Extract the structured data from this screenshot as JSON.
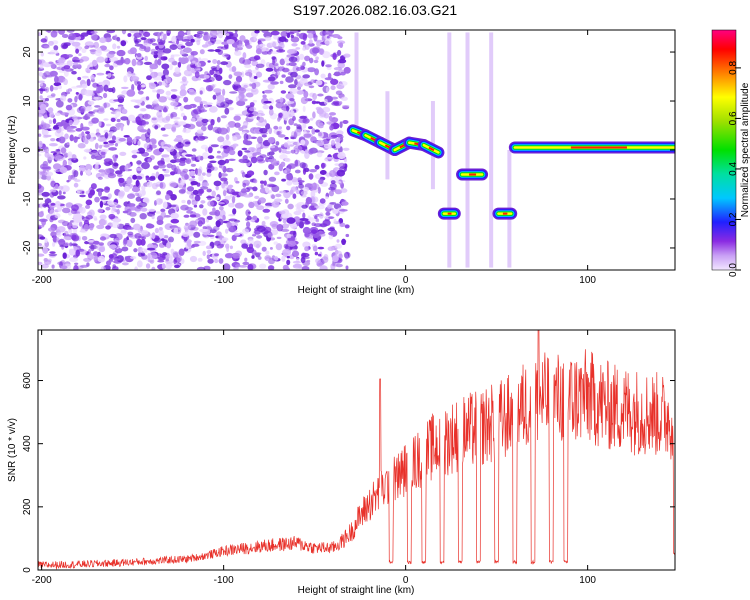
{
  "title": "S197.2026.082.16.03.G21",
  "colors": {
    "snr_line": "#e8312a",
    "frame": "#000000"
  },
  "chart_data": [
    {
      "type": "heatmap",
      "title": "S197.2026.082.16.03.G21",
      "xlabel": "Height of straight line (km)",
      "ylabel": "Frequency (Hz)",
      "xlim": [
        -202,
        148
      ],
      "ylim": [
        -24.5,
        24.5
      ],
      "xticks": [
        -200,
        -100,
        0,
        100
      ],
      "xtick_labels": [
        "-200",
        "-100",
        "0",
        "100"
      ],
      "yticks": [
        -20,
        -10,
        0,
        10,
        20
      ],
      "ytick_labels": [
        "-20",
        "-10",
        "0",
        "10",
        "20"
      ],
      "noise_region": {
        "x": [
          -202,
          -32
        ],
        "y": [
          -24.5,
          24.5
        ]
      },
      "ridge": [
        {
          "x": [
            -29,
            -22
          ],
          "f": [
            4,
            3
          ]
        },
        {
          "x": [
            -22,
            -14
          ],
          "f": [
            3,
            1.5
          ]
        },
        {
          "x": [
            -14,
            -6
          ],
          "f": [
            1.5,
            0
          ]
        },
        {
          "x": [
            -6,
            2
          ],
          "f": [
            0,
            1.5
          ]
        },
        {
          "x": [
            2,
            10
          ],
          "f": [
            1.5,
            1
          ]
        },
        {
          "x": [
            10,
            18
          ],
          "f": [
            1,
            -0.5
          ]
        },
        {
          "x": [
            21,
            27
          ],
          "f": [
            -13,
            -13
          ]
        },
        {
          "x": [
            31,
            42
          ],
          "f": [
            -5,
            -5
          ]
        },
        {
          "x": [
            51,
            58
          ],
          "f": [
            -13,
            -13
          ]
        },
        {
          "x": [
            60,
            148
          ],
          "f": [
            0.5,
            0.5
          ]
        }
      ],
      "colorbar": {
        "label": "Normalized spectral amplitude",
        "range": [
          0.0,
          0.95
        ],
        "ticks": [
          0.0,
          0.2,
          0.4,
          0.6,
          0.8
        ],
        "tick_labels": [
          "0.0",
          "0.2",
          "0.4",
          "0.6",
          "0.8"
        ]
      }
    },
    {
      "type": "line",
      "xlabel": "Height of straight line (km)",
      "ylabel": "SNR (10 * v/v)",
      "xlim": [
        -202,
        148
      ],
      "ylim": [
        0,
        760
      ],
      "xticks": [
        -200,
        -100,
        0,
        100
      ],
      "xtick_labels": [
        "-200",
        "-100",
        "0",
        "100"
      ],
      "yticks": [
        0,
        200,
        400,
        600
      ],
      "ytick_labels": [
        "0",
        "200",
        "400",
        "600"
      ],
      "series": [
        {
          "name": "SNR",
          "x": [
            -202,
            -180,
            -160,
            -140,
            -120,
            -110,
            -100,
            -80,
            -60,
            -50,
            -40,
            -35,
            -30,
            -25,
            -20,
            -15,
            -10,
            -5,
            0,
            5,
            10,
            15,
            20,
            25,
            30,
            35,
            40,
            45,
            50,
            55,
            60,
            65,
            70,
            75,
            80,
            85,
            90,
            95,
            100,
            110,
            120,
            130,
            140,
            148
          ],
          "y": [
            15,
            18,
            22,
            28,
            35,
            45,
            60,
            75,
            85,
            70,
            70,
            90,
            120,
            170,
            210,
            240,
            270,
            290,
            320,
            340,
            360,
            390,
            400,
            420,
            430,
            440,
            450,
            460,
            470,
            480,
            500,
            520,
            530,
            540,
            540,
            545,
            540,
            545,
            550,
            520,
            510,
            500,
            490,
            480
          ],
          "dropouts": [
            -8,
            2,
            10,
            20,
            30,
            40,
            50,
            60,
            70,
            80,
            88
          ],
          "spikes": [
            {
              "x": 73,
              "y": 760
            },
            {
              "x": 97,
              "y": 605
            },
            {
              "x": -14,
              "y": 605
            }
          ]
        }
      ]
    }
  ]
}
